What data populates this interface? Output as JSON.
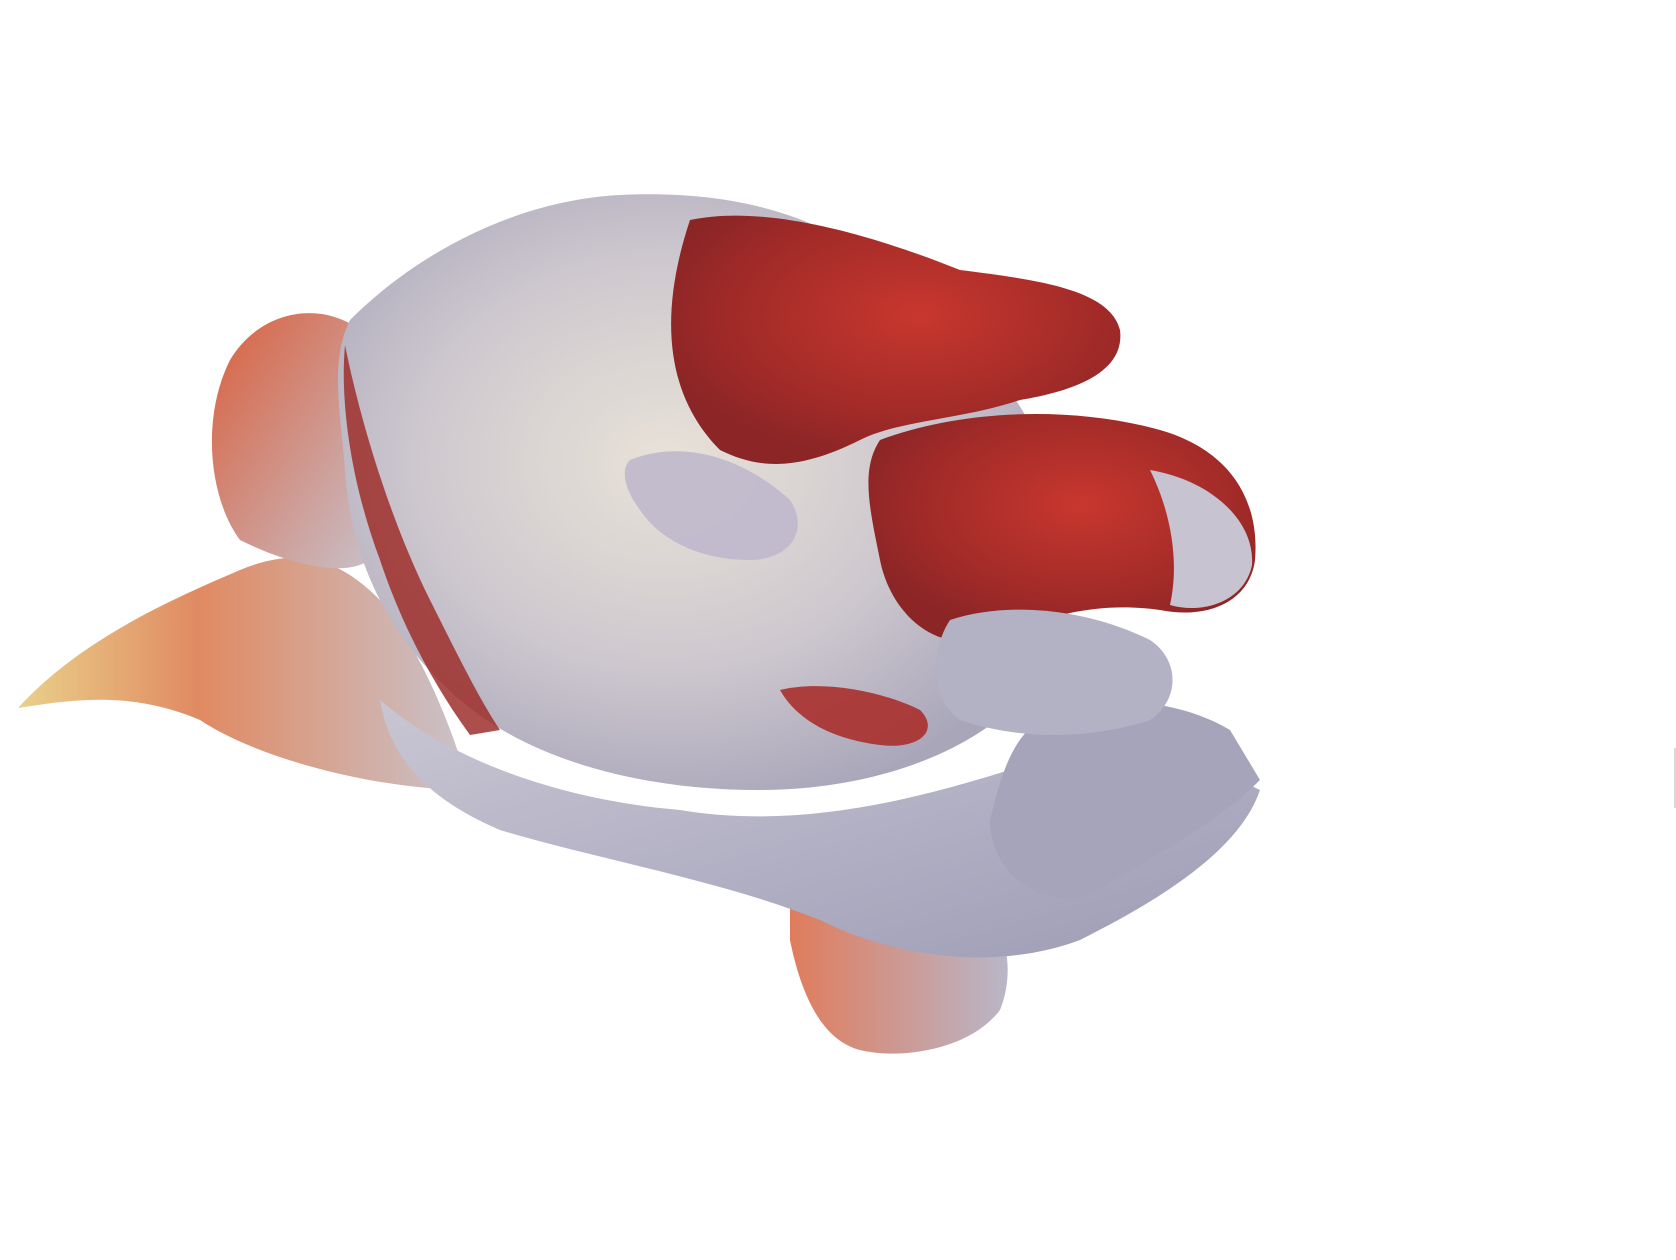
{
  "viewport": {
    "background": "#ffffff",
    "object": "3d-surface-mesh",
    "colors": {
      "red": "#b8342c",
      "dark_red": "#8e2a2a",
      "lavender": "#b8b8cc",
      "pale_grey": "#d9d4d6",
      "beige": "#d9c9a8",
      "gold": "#e6c47a",
      "salmon": "#e07a5a",
      "slate": "#8a8aa6"
    }
  }
}
